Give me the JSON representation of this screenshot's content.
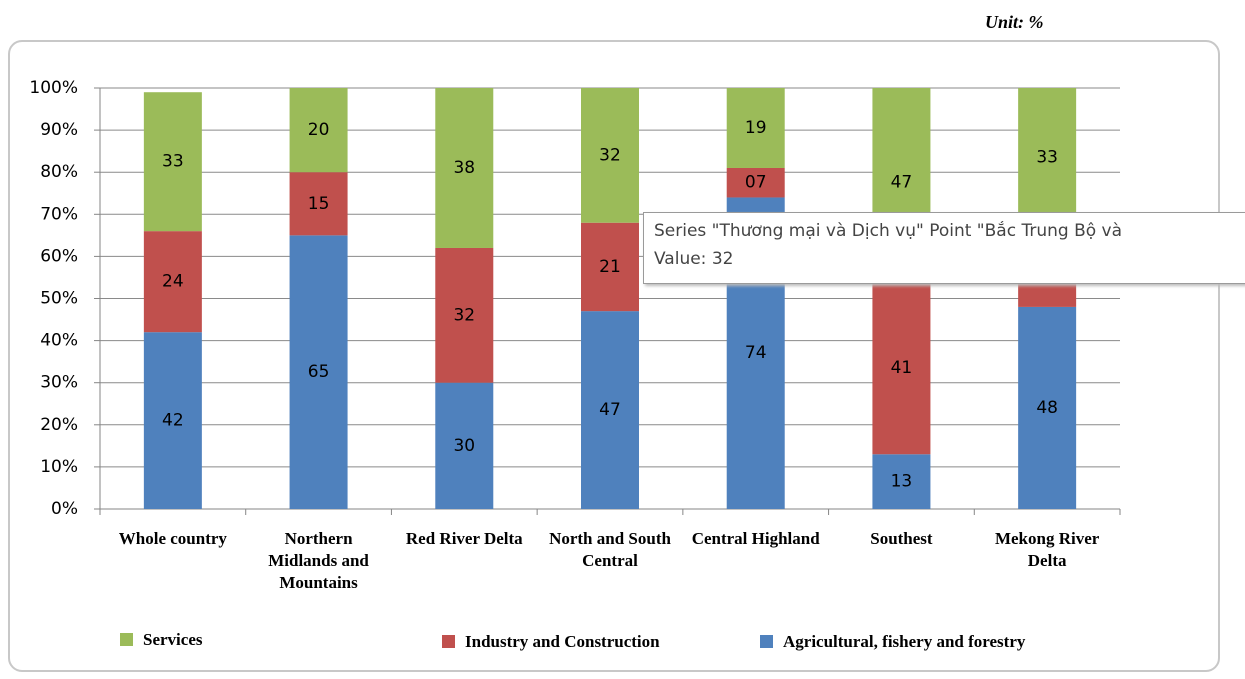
{
  "chart_data": {
    "type": "stacked_bar_100",
    "unit_note": "Unit: %",
    "categories": [
      "Whole country",
      "Northern Midlands and Mountains",
      "Red River Delta",
      "North and South Central",
      "Central Highland",
      "Southest",
      "Mekong River Delta"
    ],
    "series": [
      {
        "name": "Agricultural, fishery and forestry",
        "color": "#4f81bd",
        "values": [
          42,
          65,
          30,
          47,
          74,
          13,
          48
        ],
        "value_labels": [
          "42",
          "65",
          "30",
          "47",
          "74",
          "13",
          "48"
        ]
      },
      {
        "name": "Industry and Construction",
        "color": "#c0504d",
        "values": [
          24,
          15,
          32,
          21,
          7,
          41,
          19
        ],
        "value_labels": [
          "24",
          "15",
          "32",
          "21",
          "07",
          "41",
          null
        ]
      },
      {
        "name": "Services",
        "color": "#9bbb59",
        "values": [
          33,
          20,
          38,
          32,
          19,
          47,
          33
        ],
        "value_labels": [
          "33",
          "20",
          "38",
          "32",
          "19",
          "47",
          "33"
        ]
      }
    ],
    "ylim": [
      0,
      100
    ],
    "yticks": [
      {
        "value": 0,
        "label": "0%"
      },
      {
        "value": 10,
        "label": "10%"
      },
      {
        "value": 20,
        "label": "20%"
      },
      {
        "value": 30,
        "label": "30%"
      },
      {
        "value": 40,
        "label": "40%"
      },
      {
        "value": 50,
        "label": "50%"
      },
      {
        "value": 60,
        "label": "60%"
      },
      {
        "value": 70,
        "label": "70%"
      },
      {
        "value": 80,
        "label": "80%"
      },
      {
        "value": 90,
        "label": "90%"
      },
      {
        "value": 100,
        "label": "100%"
      }
    ],
    "grid": true,
    "tooltip": {
      "line1": "Series \"Thương mại và Dịch vụ\" Point \"Bắc Trung Bộ và",
      "line2": "Value: 32"
    }
  }
}
